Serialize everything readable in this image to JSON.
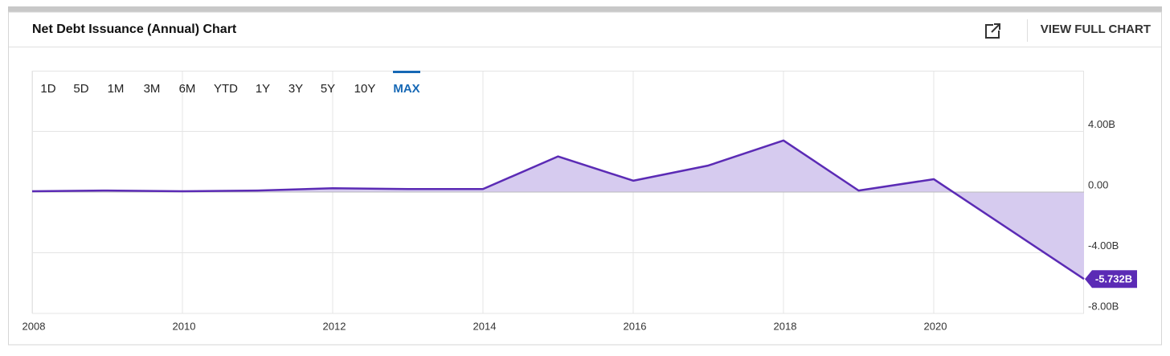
{
  "header": {
    "title": "Net Debt Issuance (Annual) Chart",
    "action": "VIEW FULL CHART"
  },
  "range_buttons": [
    "1D",
    "5D",
    "1M",
    "3M",
    "6M",
    "YTD",
    "1Y",
    "3Y",
    "5Y",
    "10Y",
    "MAX"
  ],
  "active_range": "MAX",
  "chart_data": {
    "type": "area",
    "x": [
      2008,
      2009,
      2010,
      2011,
      2012,
      2013,
      2014,
      2015,
      2016,
      2017,
      2018,
      2019,
      2020,
      2022
    ],
    "values": [
      0.05,
      0.1,
      0.05,
      0.1,
      0.25,
      0.2,
      0.2,
      2.35,
      0.75,
      1.75,
      3.4,
      0.1,
      0.85,
      -5.732
    ],
    "value_labels": [
      null,
      null,
      null,
      null,
      null,
      null,
      null,
      null,
      null,
      null,
      null,
      null,
      null,
      "-5.732B"
    ],
    "color": "#5b2bb5",
    "fill": "#d6cbef",
    "xlim": [
      2008,
      2022
    ],
    "xticks": [
      2008,
      2010,
      2012,
      2014,
      2016,
      2018,
      2020
    ],
    "ylim": [
      -8,
      8
    ],
    "yticks": [
      {
        "value": 4,
        "label": "4.00B"
      },
      {
        "value": 0,
        "label": "0.00"
      },
      {
        "value": -4,
        "label": "-4.00B"
      },
      {
        "value": -8,
        "label": "-8.00B"
      }
    ],
    "grid": true
  }
}
